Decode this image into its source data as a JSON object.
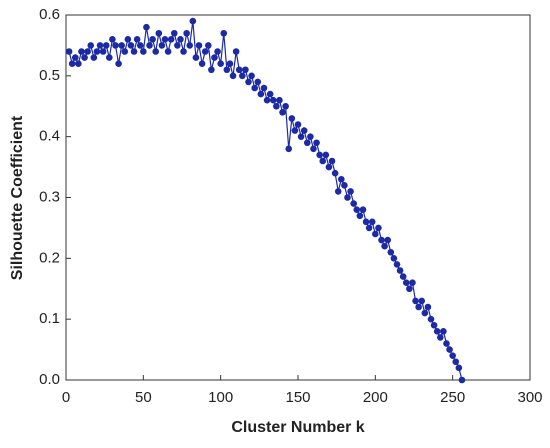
{
  "chart_data": {
    "type": "line",
    "x_label": "Cluster Number k",
    "y_label": "Silhouette Coefficient",
    "series": [
      {
        "color": "#1c2aa6",
        "x": [
          2,
          4,
          6,
          8,
          10,
          12,
          14,
          16,
          18,
          20,
          22,
          24,
          26,
          28,
          30,
          32,
          34,
          36,
          38,
          40,
          42,
          44,
          46,
          48,
          50,
          52,
          54,
          56,
          58,
          60,
          62,
          64,
          66,
          68,
          70,
          72,
          74,
          76,
          78,
          80,
          82,
          84,
          86,
          88,
          90,
          92,
          94,
          96,
          98,
          100,
          102,
          104,
          106,
          108,
          110,
          112,
          114,
          116,
          118,
          120,
          122,
          124,
          126,
          128,
          130,
          132,
          134,
          136,
          138,
          140,
          142,
          144,
          146,
          148,
          150,
          152,
          154,
          156,
          158,
          160,
          162,
          164,
          166,
          168,
          170,
          172,
          174,
          176,
          178,
          180,
          182,
          184,
          186,
          188,
          190,
          192,
          194,
          196,
          198,
          200,
          202,
          204,
          206,
          208,
          210,
          212,
          214,
          216,
          218,
          220,
          222,
          224,
          226,
          228,
          230,
          232,
          234,
          236,
          238,
          240,
          242,
          244,
          246,
          248,
          250,
          252,
          254,
          256
        ],
        "values": [
          0.54,
          0.52,
          0.53,
          0.52,
          0.54,
          0.53,
          0.54,
          0.55,
          0.53,
          0.54,
          0.55,
          0.54,
          0.55,
          0.53,
          0.56,
          0.55,
          0.52,
          0.55,
          0.54,
          0.56,
          0.55,
          0.54,
          0.56,
          0.55,
          0.54,
          0.58,
          0.55,
          0.56,
          0.54,
          0.57,
          0.55,
          0.56,
          0.54,
          0.56,
          0.57,
          0.55,
          0.56,
          0.54,
          0.57,
          0.55,
          0.59,
          0.53,
          0.55,
          0.52,
          0.54,
          0.55,
          0.51,
          0.53,
          0.54,
          0.52,
          0.57,
          0.51,
          0.52,
          0.5,
          0.54,
          0.51,
          0.5,
          0.51,
          0.49,
          0.5,
          0.48,
          0.49,
          0.47,
          0.48,
          0.46,
          0.47,
          0.46,
          0.45,
          0.46,
          0.44,
          0.45,
          0.38,
          0.43,
          0.41,
          0.42,
          0.4,
          0.41,
          0.39,
          0.4,
          0.38,
          0.39,
          0.37,
          0.36,
          0.37,
          0.35,
          0.36,
          0.34,
          0.31,
          0.33,
          0.32,
          0.3,
          0.31,
          0.29,
          0.28,
          0.27,
          0.28,
          0.26,
          0.25,
          0.26,
          0.24,
          0.25,
          0.23,
          0.22,
          0.23,
          0.21,
          0.2,
          0.19,
          0.18,
          0.17,
          0.16,
          0.15,
          0.16,
          0.13,
          0.12,
          0.13,
          0.11,
          0.12,
          0.1,
          0.09,
          0.08,
          0.07,
          0.08,
          0.06,
          0.05,
          0.04,
          0.03,
          0.02,
          0.0
        ]
      }
    ],
    "xlim": [
      0,
      300
    ],
    "xticks": [
      0,
      50,
      100,
      150,
      200,
      250,
      300
    ],
    "ylim": [
      0,
      0.6
    ],
    "yticks": [
      {
        "value": 0,
        "label": "0.0"
      },
      0.1,
      0.2,
      0.3,
      0.4,
      0.5,
      0.6
    ]
  }
}
